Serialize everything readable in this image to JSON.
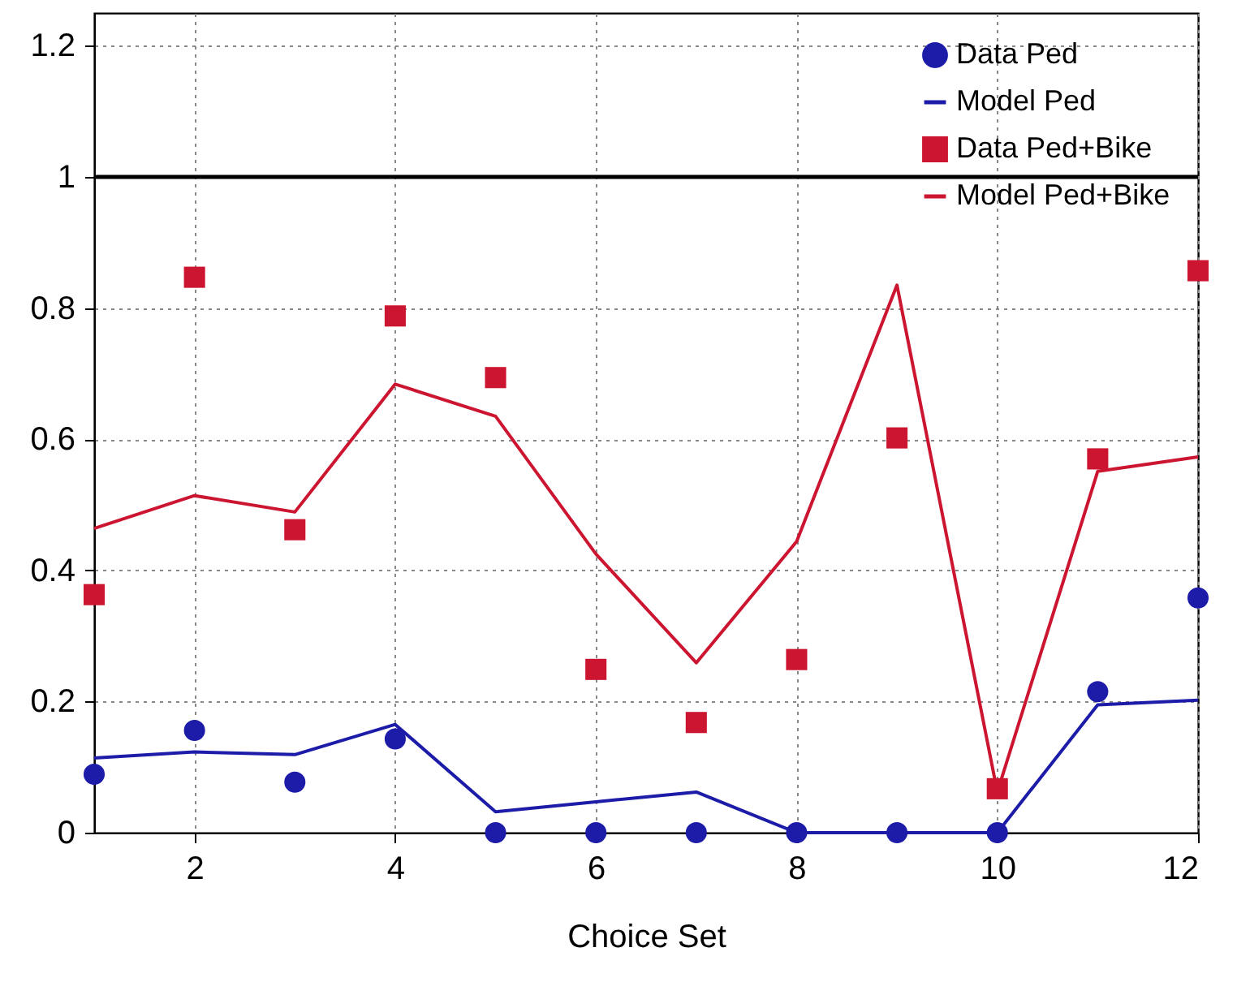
{
  "chart_data": {
    "type": "line",
    "xlabel": "Choice Set",
    "x": [
      1,
      2,
      3,
      4,
      5,
      6,
      7,
      8,
      9,
      10,
      11,
      12
    ],
    "xlim": [
      1,
      12
    ],
    "xticks": [
      2,
      4,
      6,
      8,
      10,
      12
    ],
    "ylim": [
      0,
      1.25
    ],
    "yticks": [
      0,
      0.2,
      0.4,
      0.6,
      0.8,
      1,
      1.2
    ],
    "grid": true,
    "legend": "top right",
    "ref_lines": [
      {
        "axis": "y",
        "value": 1,
        "color": "#000000"
      }
    ],
    "series": [
      {
        "name": "Data Ped",
        "type": "scatter",
        "marker": "circle",
        "color": "#1c1ca8",
        "values": [
          0.089,
          0.156,
          0.077,
          0.143,
          0,
          0,
          0,
          0,
          0,
          0,
          0.215,
          0.358
        ]
      },
      {
        "name": "Model Ped",
        "type": "line",
        "marker": "none",
        "color": "#1c1ca8",
        "values": [
          0.114,
          0.123,
          0.119,
          0.165,
          0.032,
          0.047,
          0.062,
          0,
          0,
          0,
          0.195,
          0.202
        ]
      },
      {
        "name": "Data Ped+Bike",
        "type": "scatter",
        "marker": "square",
        "color": "#cc1530",
        "values": [
          0.363,
          0.847,
          0.462,
          0.788,
          0.694,
          0.249,
          0.168,
          0.264,
          0.602,
          0.067,
          0.57,
          0.857
        ]
      },
      {
        "name": "Model Ped+Bike",
        "type": "line",
        "marker": "none",
        "color": "#cc1530",
        "values": [
          0.464,
          0.514,
          0.489,
          0.684,
          0.635,
          0.425,
          0.259,
          0.444,
          0.835,
          0.062,
          0.551,
          0.573
        ]
      }
    ]
  }
}
